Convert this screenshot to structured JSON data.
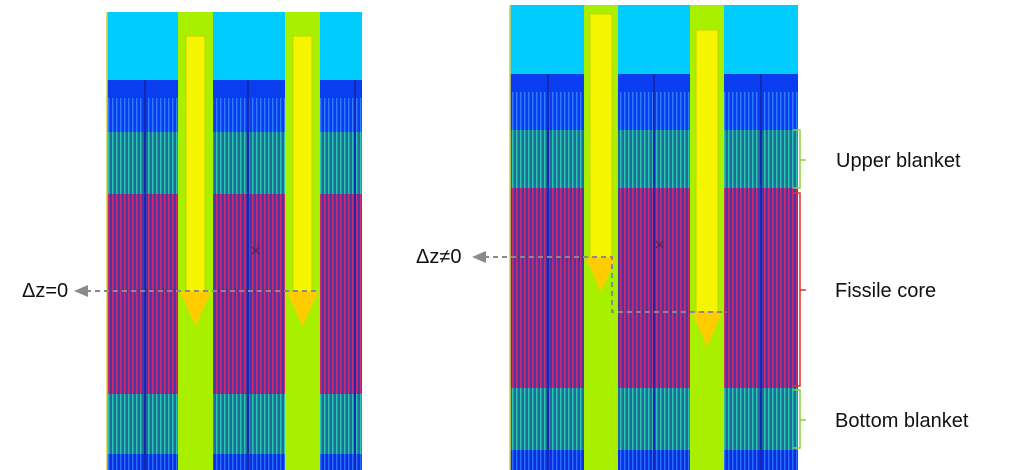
{
  "labels": {
    "left_delta": "Δz=0",
    "right_delta": "Δz≠0",
    "upper_blanket": "Upper blanket",
    "fissile_core": "Fissile core",
    "bottom_blanket": "Bottom blanket"
  },
  "colors": {
    "coolant_top": "#00ccff",
    "blue_dark": "#0a3cf0",
    "blue_fine": "#0f5cf2",
    "blanket_teal": "#1e7d96",
    "blanket_stripe": "#2bc2b4",
    "core_purple": "#5a38a8",
    "core_stripe": "#cc2c6e",
    "rod_channel": "#a8f000",
    "rod_yellow": "#f5f500",
    "arrow_head": "#ffcc00",
    "bracket_green": "#8ccf3c",
    "bracket_red": "#e03030",
    "dash_gray": "#8a8a8a"
  }
}
